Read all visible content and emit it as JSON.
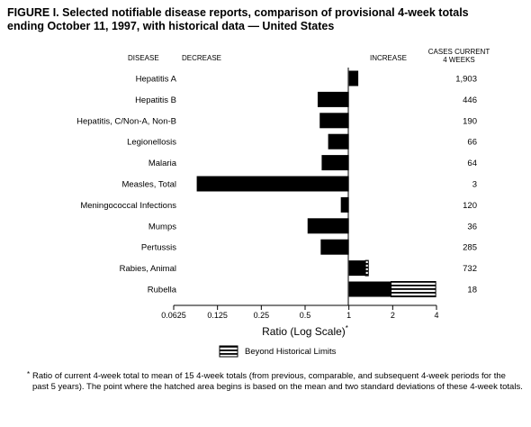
{
  "title": {
    "line1": "FIGURE I. Selected notifiable disease reports, comparison of provisional 4-week totals",
    "line2": "ending October 11, 1997, with historical data — United States"
  },
  "headers": {
    "disease": "DISEASE",
    "decrease": "DECREASE",
    "increase": "INCREASE",
    "cases_line1": "CASES CURRENT",
    "cases_line2": "4 WEEKS"
  },
  "chart_data": {
    "type": "bar",
    "orientation": "horizontal",
    "log_scale": true,
    "log_base": 2,
    "baseline": 1,
    "xlim": [
      0.0625,
      4
    ],
    "xlabel": "Ratio (Log Scale)",
    "xlabel_mark": "*",
    "xticks": [
      "0.0625",
      "0.125",
      "0.25",
      "0.5",
      "1",
      "2",
      "4"
    ],
    "xtick_values": [
      0.0625,
      0.125,
      0.25,
      0.5,
      1,
      2,
      4
    ],
    "categories": [
      "Hepatitis A",
      "Hepatitis B",
      "Hepatitis, C/Non-A, Non-B",
      "Legionellosis",
      "Malaria",
      "Measles, Total",
      "Meningococcal Infections",
      "Mumps",
      "Pertussis",
      "Rabies, Animal",
      "Rubella"
    ],
    "values": [
      1.16,
      0.61,
      0.63,
      0.72,
      0.65,
      0.09,
      0.88,
      0.52,
      0.64,
      1.36,
      3.95
    ],
    "beyond_limits_from": [
      null,
      null,
      null,
      null,
      null,
      null,
      null,
      null,
      null,
      1.3,
      1.95
    ],
    "cases": [
      "1,903",
      "446",
      "190",
      "66",
      "64",
      "3",
      "120",
      "36",
      "285",
      "732",
      "18"
    ],
    "legend": {
      "label": "Beyond Historical Limits",
      "position": "bottom-center"
    },
    "colors": {
      "bar": "#000000",
      "hatch_background": "#ffffff"
    }
  },
  "footnote": {
    "mark": "*",
    "text": "Ratio of current 4-week total to mean of 15 4-week totals (from previous, comparable, and subsequent 4-week periods for the past 5 years). The point where the hatched area begins is based on the mean and two standard deviations of these 4-week totals."
  }
}
